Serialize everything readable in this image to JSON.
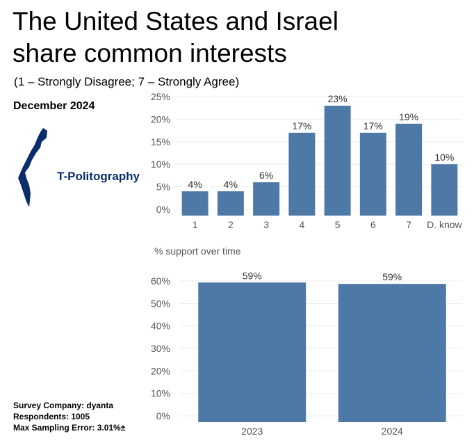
{
  "header": {
    "title_line1": "The United States and Israel",
    "title_line2": "share common interests",
    "subtitle": "(1 – Strongly Disagree; 7 – Strongly Agree)",
    "date": "December 2024"
  },
  "logo": {
    "text": "T-Politography",
    "icon": "israel-map-icon",
    "color": "#0b2d6b"
  },
  "footer": {
    "company": "Survey Company: dyanta",
    "respondents": "Respondents: 1005",
    "error": "Max Sampling Error: 3.01%±"
  },
  "colors": {
    "bar": "#4e79a7",
    "grid": "#ececec",
    "axis_text": "#555555",
    "label_text": "#333333"
  },
  "chart_data": [
    {
      "type": "bar",
      "title": "",
      "categories": [
        "1",
        "2",
        "3",
        "4",
        "5",
        "6",
        "7",
        "D. know"
      ],
      "values": [
        4,
        4,
        6,
        17,
        23,
        17,
        19,
        10
      ],
      "value_labels": [
        "4%",
        "4%",
        "6%",
        "17%",
        "23%",
        "17%",
        "19%",
        "10%"
      ],
      "yticks": [
        "0%",
        "5%",
        "10%",
        "15%",
        "20%",
        "25%"
      ],
      "ylim": [
        0,
        25
      ],
      "grid": true
    },
    {
      "type": "bar",
      "title": "% support over time",
      "categories": [
        "2023",
        "2024"
      ],
      "values": [
        59.3,
        58.7
      ],
      "value_labels": [
        "59%",
        "59%"
      ],
      "yticks": [
        "0%",
        "10%",
        "20%",
        "30%",
        "40%",
        "50%",
        "60%"
      ],
      "ylim": [
        0,
        60
      ],
      "grid": true
    }
  ]
}
